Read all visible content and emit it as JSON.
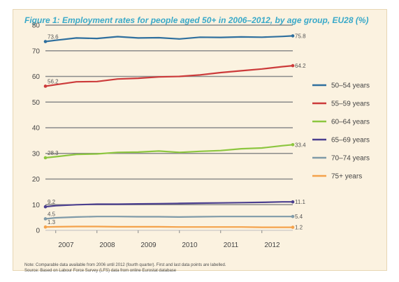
{
  "title": "Figure 1: Employment rates for people aged 50+ in 2006–2012, by age group, EU28 (%)",
  "notes": [
    "Note: Comparable data available from 2006 until 2012 (fourth quarter). First and last data points are labelled.",
    "Source: Based on Labour Force Survey (LFS) data from online Eurostat database"
  ],
  "chart_data": {
    "type": "line",
    "title": "Figure 1: Employment rates for people aged 50+ in 2006–2012, by age group, EU28 (%)",
    "xlabel": "",
    "ylabel": "",
    "ylim": [
      0,
      80
    ],
    "yticks": [
      0,
      10,
      20,
      30,
      40,
      50,
      60,
      70,
      80
    ],
    "xlim": [
      2006.75,
      2012.75
    ],
    "xtick_labels": [
      "2007",
      "2008",
      "2009",
      "2010",
      "2011",
      "2012"
    ],
    "grid": true,
    "legend_position": "right",
    "series": [
      {
        "name": "50–54 years",
        "color": "#2e6f9e",
        "x": [
          2006.75,
          2007.0,
          2007.5,
          2008.0,
          2008.5,
          2009.0,
          2009.5,
          2010.0,
          2010.5,
          2011.0,
          2011.5,
          2012.0,
          2012.5,
          2012.75
        ],
        "y": [
          73.6,
          74.1,
          75.0,
          74.8,
          75.5,
          75.0,
          75.1,
          74.6,
          75.3,
          75.2,
          75.4,
          75.3,
          75.6,
          75.8
        ],
        "first_label": "73.6",
        "last_label": "75.8"
      },
      {
        "name": "55–59 years",
        "color": "#cc3a3a",
        "x": [
          2006.75,
          2007.0,
          2007.5,
          2008.0,
          2008.5,
          2009.0,
          2009.5,
          2010.0,
          2010.5,
          2011.0,
          2011.5,
          2012.0,
          2012.5,
          2012.75
        ],
        "y": [
          56.2,
          56.8,
          57.9,
          58.0,
          59.0,
          59.3,
          59.8,
          60.0,
          60.6,
          61.5,
          62.2,
          62.9,
          63.8,
          64.2
        ],
        "first_label": "56.2",
        "last_label": "64.2"
      },
      {
        "name": "60–64 years",
        "color": "#8cc63f",
        "x": [
          2006.75,
          2007.0,
          2007.5,
          2008.0,
          2008.5,
          2009.0,
          2009.5,
          2010.0,
          2010.5,
          2011.0,
          2011.5,
          2012.0,
          2012.5,
          2012.75
        ],
        "y": [
          28.3,
          28.7,
          29.6,
          29.8,
          30.4,
          30.5,
          30.9,
          30.4,
          30.8,
          31.1,
          31.8,
          32.1,
          33.0,
          33.4
        ],
        "first_label": "28.3",
        "last_label": "33.4"
      },
      {
        "name": "65–69 years",
        "color": "#4b3f8f",
        "x": [
          2006.75,
          2007.0,
          2007.5,
          2008.0,
          2008.5,
          2009.0,
          2009.5,
          2010.0,
          2010.5,
          2011.0,
          2011.5,
          2012.0,
          2012.5,
          2012.75
        ],
        "y": [
          9.2,
          9.6,
          10.0,
          10.2,
          10.2,
          10.3,
          10.4,
          10.5,
          10.6,
          10.7,
          10.8,
          10.9,
          11.1,
          11.1
        ],
        "first_label": "9.2",
        "last_label": "11.1"
      },
      {
        "name": "70–74 years",
        "color": "#7f9aa8",
        "x": [
          2006.75,
          2007.0,
          2007.5,
          2008.0,
          2008.5,
          2009.0,
          2009.5,
          2010.0,
          2010.5,
          2011.0,
          2011.5,
          2012.0,
          2012.5,
          2012.75
        ],
        "y": [
          4.5,
          4.9,
          5.2,
          5.4,
          5.4,
          5.3,
          5.3,
          5.2,
          5.3,
          5.4,
          5.4,
          5.4,
          5.4,
          5.4
        ],
        "first_label": "4.5",
        "last_label": "5.4"
      },
      {
        "name": "75+ years",
        "color": "#f4a24b",
        "x": [
          2006.75,
          2007.0,
          2007.5,
          2008.0,
          2008.5,
          2009.0,
          2009.5,
          2010.0,
          2010.5,
          2011.0,
          2011.5,
          2012.0,
          2012.5,
          2012.75
        ],
        "y": [
          1.3,
          1.4,
          1.5,
          1.5,
          1.4,
          1.4,
          1.4,
          1.3,
          1.3,
          1.3,
          1.3,
          1.2,
          1.2,
          1.2
        ],
        "first_label": "1.3",
        "last_label": "1.2"
      }
    ]
  }
}
